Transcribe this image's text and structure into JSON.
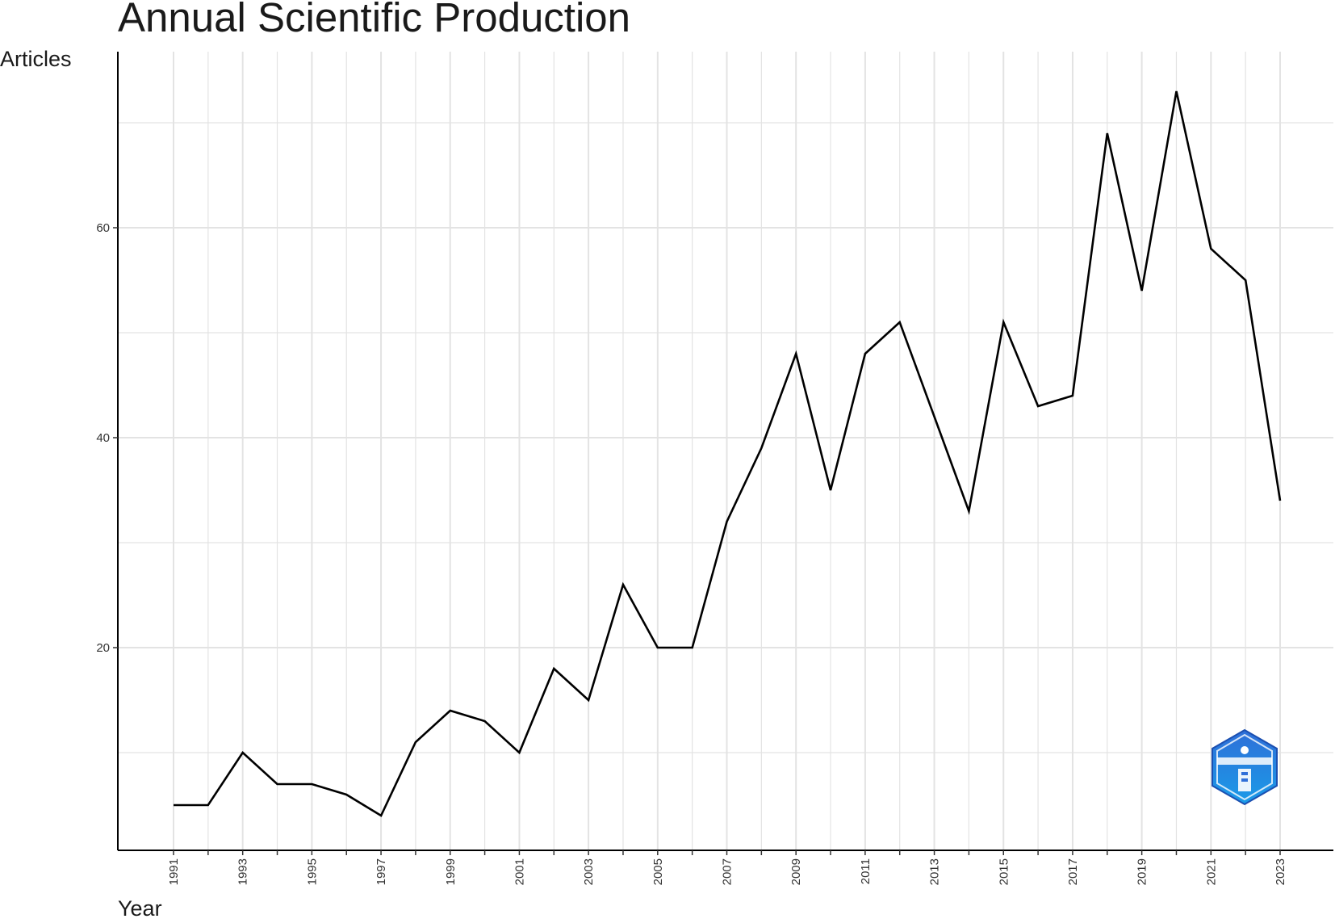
{
  "chart_data": {
    "type": "line",
    "title": "Annual Scientific Production",
    "xlabel": "Year",
    "ylabel": "Articles",
    "x": [
      1991,
      1992,
      1993,
      1994,
      1995,
      1996,
      1997,
      1998,
      1999,
      2000,
      2001,
      2002,
      2003,
      2004,
      2005,
      2006,
      2007,
      2008,
      2009,
      2010,
      2011,
      2012,
      2013,
      2014,
      2015,
      2016,
      2017,
      2018,
      2019,
      2020,
      2021,
      2022,
      2023
    ],
    "values": [
      5,
      5,
      10,
      7,
      7,
      6,
      4,
      11,
      14,
      13,
      10,
      18,
      15,
      26,
      20,
      20,
      32,
      39,
      48,
      35,
      48,
      51,
      42,
      33,
      51,
      43,
      44,
      69,
      54,
      73,
      58,
      55,
      34
    ],
    "x_tick_labels": [
      "1991",
      "1993",
      "1995",
      "1997",
      "1999",
      "2001",
      "2003",
      "2005",
      "2007",
      "2009",
      "2011",
      "2013",
      "2015",
      "2017",
      "2019",
      "2021",
      "2023"
    ],
    "y_ticks": [
      20,
      40,
      60
    ],
    "xlim": [
      1989.4,
      1992.0
    ],
    "ylim": [
      0,
      76
    ],
    "grid": true,
    "line_color": "#000000",
    "grid_color": "#e3e3e3"
  }
}
